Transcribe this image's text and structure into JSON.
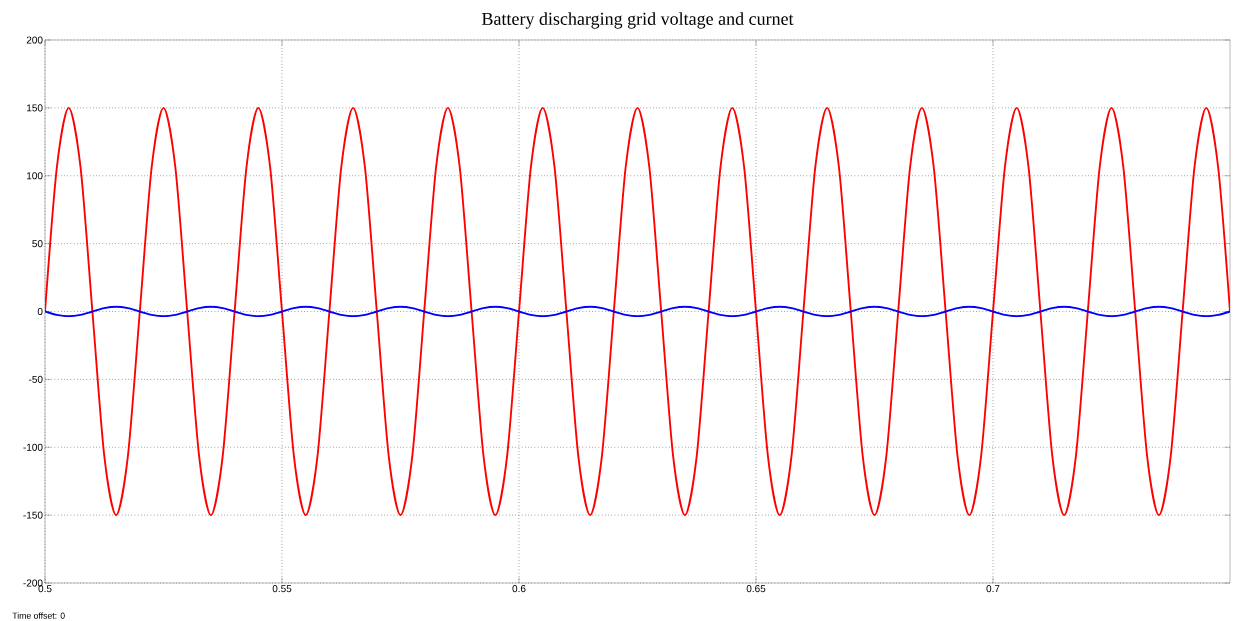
{
  "chart_data": {
    "type": "line",
    "title": "Battery discharging grid voltage and curnet",
    "annotations": [
      "Time offset:  0"
    ],
    "x": [
      0.5,
      0.5025,
      0.505,
      0.5075,
      0.51,
      0.5125,
      0.515,
      0.5175,
      0.52,
      0.5225,
      0.525,
      0.5275,
      0.53,
      0.5325,
      0.535,
      0.5375,
      0.54,
      0.5425,
      0.545,
      0.5475,
      0.55,
      0.5525,
      0.555,
      0.5575,
      0.56,
      0.5625,
      0.565,
      0.5675,
      0.57,
      0.5725,
      0.575,
      0.5775,
      0.58,
      0.5825,
      0.585,
      0.5875,
      0.59,
      0.5925,
      0.595,
      0.5975,
      0.6,
      0.6025,
      0.605,
      0.6075,
      0.61,
      0.6125,
      0.615,
      0.6175,
      0.62,
      0.6225,
      0.625,
      0.6275,
      0.63,
      0.6325,
      0.635,
      0.6375,
      0.64,
      0.6425,
      0.645,
      0.6475,
      0.65,
      0.6525,
      0.655,
      0.6575,
      0.66,
      0.6625,
      0.665,
      0.6675,
      0.67,
      0.6725,
      0.675,
      0.6775,
      0.68,
      0.6825,
      0.685,
      0.6875,
      0.69,
      0.6925,
      0.695,
      0.6975,
      0.7,
      0.7025,
      0.705,
      0.7075,
      0.71,
      0.7125,
      0.715,
      0.7175,
      0.72,
      0.7225,
      0.725,
      0.7275,
      0.73,
      0.7325,
      0.735,
      0.7375,
      0.74,
      0.7425,
      0.745,
      0.7475,
      0.75
    ],
    "series": [
      {
        "color": "#ff0000",
        "values": [
          0,
          106.1,
          150,
          106.1,
          0,
          -106.1,
          -150,
          -106.1,
          0,
          106.1,
          150,
          106.1,
          0,
          -106.1,
          -150,
          -106.1,
          0,
          106.1,
          150,
          106.1,
          0,
          -106.1,
          -150,
          -106.1,
          0,
          106.1,
          150,
          106.1,
          0,
          -106.1,
          -150,
          -106.1,
          0,
          106.1,
          150,
          106.1,
          0,
          -106.1,
          -150,
          -106.1,
          0,
          106.1,
          150,
          106.1,
          0,
          -106.1,
          -150,
          -106.1,
          0,
          106.1,
          150,
          106.1,
          0,
          -106.1,
          -150,
          -106.1,
          0,
          106.1,
          150,
          106.1,
          0,
          -106.1,
          -150,
          -106.1,
          0,
          106.1,
          150,
          106.1,
          0,
          -106.1,
          -150,
          -106.1,
          0,
          106.1,
          150,
          106.1,
          0,
          -106.1,
          -150,
          -106.1,
          0,
          106.1,
          150,
          106.1,
          0,
          -106.1,
          -150,
          -106.1,
          0,
          106.1,
          150,
          106.1,
          0,
          -106.1,
          -150,
          -106.1,
          0,
          106.1,
          150,
          106.1,
          0
        ]
      },
      {
        "color": "#0000ff",
        "values": [
          0,
          -2.5,
          -3.5,
          -2.5,
          0,
          2.5,
          3.5,
          2.5,
          0,
          -2.5,
          -3.5,
          -2.5,
          0,
          2.5,
          3.5,
          2.5,
          0,
          -2.5,
          -3.5,
          -2.5,
          0,
          2.5,
          3.5,
          2.5,
          0,
          -2.5,
          -3.5,
          -2.5,
          0,
          2.5,
          3.5,
          2.5,
          0,
          -2.5,
          -3.5,
          -2.5,
          0,
          2.5,
          3.5,
          2.5,
          0,
          -2.5,
          -3.5,
          -2.5,
          0,
          2.5,
          3.5,
          2.5,
          0,
          -2.5,
          -3.5,
          -2.5,
          0,
          2.5,
          3.5,
          2.5,
          0,
          -2.5,
          -3.5,
          -2.5,
          0,
          2.5,
          3.5,
          2.5,
          0,
          -2.5,
          -3.5,
          -2.5,
          0,
          2.5,
          3.5,
          2.5,
          0,
          -2.5,
          -3.5,
          -2.5,
          0,
          2.5,
          3.5,
          2.5,
          0,
          -2.5,
          -3.5,
          -2.5,
          0,
          2.5,
          3.5,
          2.5,
          0,
          -2.5,
          -3.5,
          -2.5,
          0,
          2.5,
          3.5,
          2.5,
          0,
          -2.5,
          -3.5,
          -2.5,
          0
        ]
      }
    ],
    "xlim": [
      0.5,
      0.75
    ],
    "xticks": [
      0.5,
      0.55,
      0.6,
      0.65,
      0.7
    ],
    "ylim": [
      -200,
      200
    ],
    "yticks": [
      -200,
      -150,
      -100,
      -50,
      0,
      50,
      100,
      150,
      200
    ],
    "grid": true
  }
}
